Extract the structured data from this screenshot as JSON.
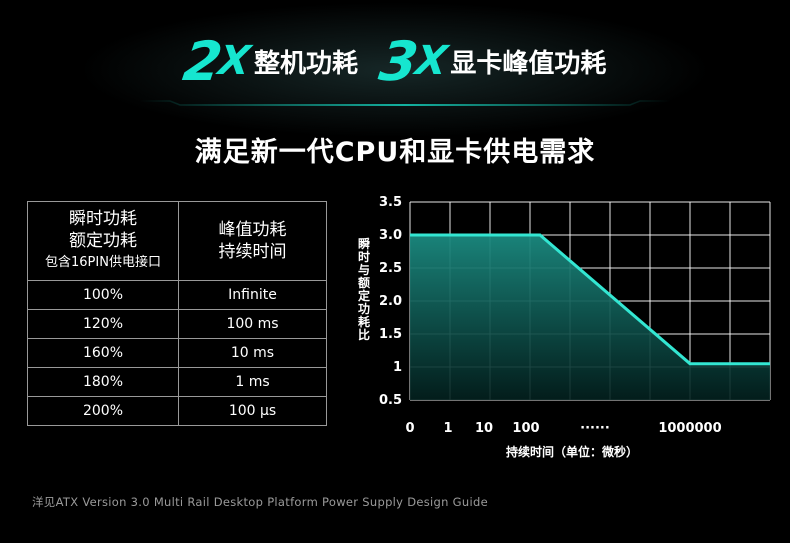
{
  "header": {
    "num1": "2",
    "x1": "X",
    "text1": "整机功耗",
    "num2": "3",
    "x2": "X",
    "text2": "显卡峰值功耗",
    "subtitle": "满足新一代CPU和显卡供电需求"
  },
  "table": {
    "col1_header": [
      "瞬时功耗",
      "额定功耗",
      "包含16PIN供电接口"
    ],
    "col2_header": [
      "峰值功耗",
      "持续时间"
    ],
    "rows": [
      {
        "load": "100%",
        "duration": "Infinite"
      },
      {
        "load": "120%",
        "duration": "100 ms"
      },
      {
        "load": "160%",
        "duration": "10 ms"
      },
      {
        "load": "180%",
        "duration": "1 ms"
      },
      {
        "load": "200%",
        "duration": "100 μs"
      }
    ]
  },
  "chart_data": {
    "type": "area",
    "title": "",
    "xlabel": "持续时间（单位：微秒）",
    "ylabel": "瞬时与额定功耗比",
    "x_tick_labels": [
      "0",
      "1",
      "10",
      "100",
      "······",
      "1000000"
    ],
    "y_tick_labels": [
      "3.5",
      "3.0",
      "2.5",
      "2.0",
      "1.5",
      "1",
      "0.5"
    ],
    "ylim": [
      0.5,
      3.5
    ],
    "x_scale": "log (categorical ticks)",
    "series": [
      {
        "points": [
          {
            "x": "0",
            "y": 3.0
          },
          {
            "x": "100",
            "y": 3.0
          },
          {
            "x": "1000000",
            "y": 1.05
          }
        ]
      }
    ],
    "grid": true,
    "colors": {
      "line": "#33e6d2",
      "fill_top": "#1b8a80",
      "fill_bottom": "#03201e",
      "grid": "#ffffff"
    }
  },
  "footer": "洋见ATX Version 3.0 Multi Rail Desktop Platform Power Supply Design Guide"
}
